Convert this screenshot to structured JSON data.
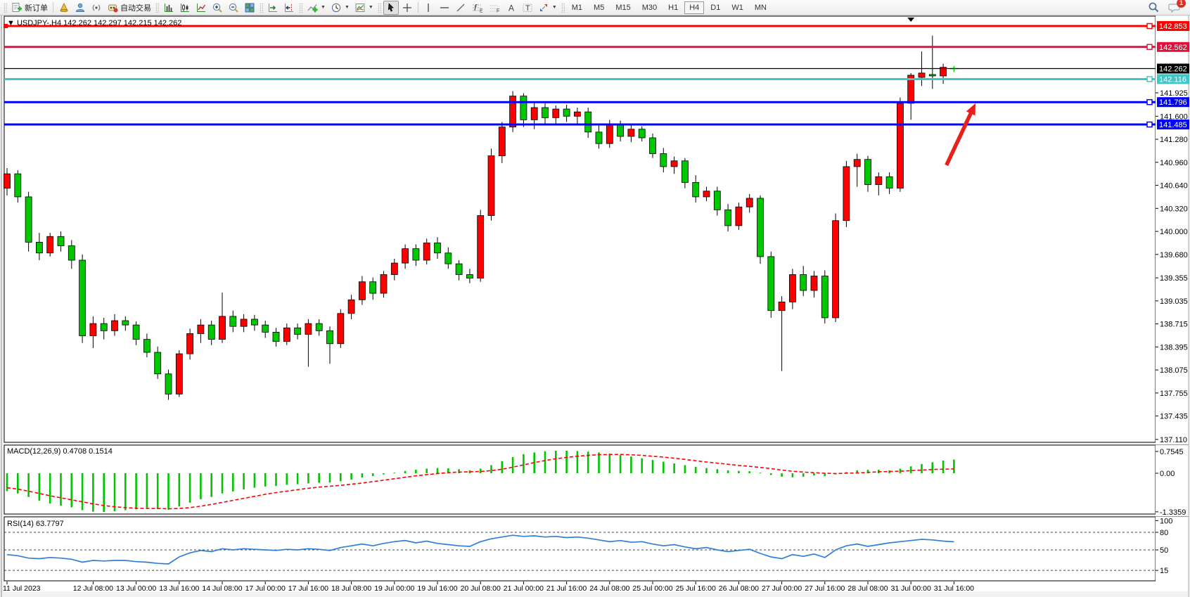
{
  "toolbar": {
    "new_order_label": "新订单",
    "autotrading_label": "自动交易",
    "timeframes": [
      "M1",
      "M5",
      "M15",
      "M30",
      "H1",
      "H4",
      "D1",
      "W1",
      "MN"
    ],
    "active_timeframe": "H4",
    "chat_badge": "1",
    "icon_buttons": [
      "new-order",
      "metaeditor",
      "community",
      "signals",
      "autotrading",
      "bar-chart",
      "candlestick-chart",
      "line-chart",
      "zoom-in",
      "zoom-out",
      "tile-windows",
      "auto-scroll",
      "chart-shift",
      "indicators",
      "periods",
      "templates",
      "cursor",
      "crosshair",
      "vertical-line",
      "horizontal-line",
      "trendline",
      "fibonacci",
      "equidistant-channel",
      "text",
      "text-label",
      "shapes",
      "search",
      "chat"
    ]
  },
  "chart_header": {
    "symbol": "USDJPY-,H4",
    "open": "142.262",
    "high": "142.297",
    "low": "142.215",
    "close": "142.262"
  },
  "chart_data": [
    {
      "type": "candlestick",
      "title": "USDJPY-,H4 142.262 142.297 142.215 142.262",
      "ylim": [
        137.07,
        142.99
      ],
      "bull_color": "#FE0000",
      "bear_color": "#00C800",
      "wick_color": "#000000",
      "current_price": {
        "value": 142.262,
        "label": "142.262",
        "bg": "#000000"
      },
      "level_lines": [
        {
          "price": 142.853,
          "label": "142.853",
          "color": "#FF0000"
        },
        {
          "price": 142.562,
          "label": "142.562",
          "color": "#DC143C"
        },
        {
          "price": 142.116,
          "label": "142.116",
          "color": "#3EC6C8"
        },
        {
          "price": 141.796,
          "label": "141.796",
          "color": "#0000FF"
        },
        {
          "price": 141.485,
          "label": "141.485",
          "color": "#0000FF"
        }
      ],
      "y_ticks": [
        "141.925",
        "141.600",
        "141.280",
        "140.960",
        "140.640",
        "140.320",
        "140.000",
        "139.680",
        "139.355",
        "139.035",
        "138.715",
        "138.395",
        "138.075",
        "137.755",
        "137.435",
        "137.110"
      ],
      "x_labels": [
        {
          "text": "11 Jul 2023",
          "idx": 0
        },
        {
          "text": "12 Jul 08:00",
          "idx": 8
        },
        {
          "text": "13 Jul 00:00",
          "idx": 12
        },
        {
          "text": "13 Jul 16:00",
          "idx": 16
        },
        {
          "text": "14 Jul 08:00",
          "idx": 20
        },
        {
          "text": "17 Jul 00:00",
          "idx": 24
        },
        {
          "text": "17 Jul 16:00",
          "idx": 28
        },
        {
          "text": "18 Jul 08:00",
          "idx": 32
        },
        {
          "text": "19 Jul 00:00",
          "idx": 36
        },
        {
          "text": "19 Jul 16:00",
          "idx": 40
        },
        {
          "text": "20 Jul 08:00",
          "idx": 44
        },
        {
          "text": "21 Jul 00:00",
          "idx": 48
        },
        {
          "text": "21 Jul 16:00",
          "idx": 52
        },
        {
          "text": "24 Jul 08:00",
          "idx": 56
        },
        {
          "text": "25 Jul 00:00",
          "idx": 60
        },
        {
          "text": "25 Jul 16:00",
          "idx": 64
        },
        {
          "text": "26 Jul 08:00",
          "idx": 68
        },
        {
          "text": "27 Jul 00:00",
          "idx": 72
        },
        {
          "text": "27 Jul 16:00",
          "idx": 76
        },
        {
          "text": "28 Jul 08:00",
          "idx": 80
        },
        {
          "text": "31 Jul 00:00",
          "idx": 84
        },
        {
          "text": "31 Jul 16:00",
          "idx": 88
        }
      ],
      "candles": [
        [
          140.6,
          140.88,
          140.5,
          140.8
        ],
        [
          140.8,
          140.85,
          140.4,
          140.48
        ],
        [
          140.48,
          140.55,
          139.72,
          139.85
        ],
        [
          139.85,
          139.98,
          139.6,
          139.7
        ],
        [
          139.7,
          139.98,
          139.65,
          139.93
        ],
        [
          139.93,
          140.0,
          139.72,
          139.8
        ],
        [
          139.8,
          139.88,
          139.48,
          139.6
        ],
        [
          139.6,
          139.68,
          138.45,
          138.55
        ],
        [
          138.55,
          138.82,
          138.38,
          138.72
        ],
        [
          138.72,
          138.8,
          138.5,
          138.62
        ],
        [
          138.62,
          138.85,
          138.55,
          138.76
        ],
        [
          138.76,
          138.82,
          138.62,
          138.7
        ],
        [
          138.7,
          138.75,
          138.42,
          138.5
        ],
        [
          138.5,
          138.58,
          138.25,
          138.32
        ],
        [
          138.32,
          138.4,
          137.95,
          138.02
        ],
        [
          138.02,
          138.08,
          137.66,
          137.74
        ],
        [
          137.74,
          138.35,
          137.7,
          138.3
        ],
        [
          138.3,
          138.65,
          138.22,
          138.58
        ],
        [
          138.58,
          138.78,
          138.45,
          138.7
        ],
        [
          138.7,
          138.76,
          138.42,
          138.5
        ],
        [
          138.5,
          139.15,
          138.45,
          138.82
        ],
        [
          138.82,
          138.9,
          138.6,
          138.68
        ],
        [
          138.68,
          138.85,
          138.6,
          138.78
        ],
        [
          138.78,
          138.84,
          138.62,
          138.7
        ],
        [
          138.7,
          138.76,
          138.52,
          138.6
        ],
        [
          138.6,
          138.66,
          138.4,
          138.47
        ],
        [
          138.47,
          138.72,
          138.42,
          138.66
        ],
        [
          138.66,
          138.72,
          138.5,
          138.57
        ],
        [
          138.57,
          138.78,
          138.12,
          138.72
        ],
        [
          138.72,
          138.78,
          138.55,
          138.62
        ],
        [
          138.62,
          138.68,
          138.16,
          138.44
        ],
        [
          138.44,
          138.92,
          138.38,
          138.86
        ],
        [
          138.86,
          139.12,
          138.78,
          139.05
        ],
        [
          139.05,
          139.38,
          138.98,
          139.3
        ],
        [
          139.3,
          139.36,
          139.05,
          139.14
        ],
        [
          139.14,
          139.45,
          139.08,
          139.4
        ],
        [
          139.4,
          139.62,
          139.32,
          139.56
        ],
        [
          139.56,
          139.82,
          139.48,
          139.76
        ],
        [
          139.76,
          139.82,
          139.52,
          139.6
        ],
        [
          139.6,
          139.9,
          139.54,
          139.84
        ],
        [
          139.84,
          139.92,
          139.62,
          139.7
        ],
        [
          139.7,
          139.78,
          139.48,
          139.55
        ],
        [
          139.55,
          139.6,
          139.32,
          139.4
        ],
        [
          139.4,
          139.48,
          139.28,
          139.35
        ],
        [
          139.35,
          140.3,
          139.3,
          140.22
        ],
        [
          140.22,
          141.15,
          140.15,
          141.05
        ],
        [
          141.05,
          141.52,
          140.95,
          141.45
        ],
        [
          141.45,
          141.95,
          141.38,
          141.88
        ],
        [
          141.88,
          141.92,
          141.45,
          141.55
        ],
        [
          141.55,
          141.8,
          141.42,
          141.72
        ],
        [
          141.72,
          141.78,
          141.5,
          141.58
        ],
        [
          141.58,
          141.75,
          141.48,
          141.7
        ],
        [
          141.7,
          141.76,
          141.52,
          141.6
        ],
        [
          141.6,
          141.72,
          141.5,
          141.66
        ],
        [
          141.66,
          141.72,
          141.3,
          141.38
        ],
        [
          141.38,
          141.5,
          141.15,
          141.22
        ],
        [
          141.22,
          141.55,
          141.16,
          141.48
        ],
        [
          141.48,
          141.54,
          141.25,
          141.32
        ],
        [
          141.32,
          141.48,
          141.24,
          141.42
        ],
        [
          141.42,
          141.46,
          141.25,
          141.3
        ],
        [
          141.3,
          141.36,
          141.02,
          141.08
        ],
        [
          141.08,
          141.16,
          140.82,
          140.9
        ],
        [
          140.9,
          141.04,
          140.8,
          140.98
        ],
        [
          140.98,
          141.02,
          140.6,
          140.68
        ],
        [
          140.68,
          140.78,
          140.4,
          140.48
        ],
        [
          140.48,
          140.62,
          140.42,
          140.56
        ],
        [
          140.56,
          140.62,
          140.22,
          140.3
        ],
        [
          140.3,
          140.38,
          140.0,
          140.08
        ],
        [
          140.08,
          140.4,
          140.02,
          140.34
        ],
        [
          140.34,
          140.52,
          140.26,
          140.46
        ],
        [
          140.46,
          140.5,
          139.55,
          139.65
        ],
        [
          139.65,
          139.72,
          138.8,
          138.9
        ],
        [
          138.9,
          139.1,
          138.06,
          139.02
        ],
        [
          139.02,
          139.48,
          138.92,
          139.4
        ],
        [
          139.4,
          139.52,
          139.1,
          139.18
        ],
        [
          139.18,
          139.45,
          139.08,
          139.38
        ],
        [
          139.38,
          139.46,
          138.72,
          138.8
        ],
        [
          138.8,
          140.25,
          138.74,
          140.15
        ],
        [
          140.15,
          140.98,
          140.06,
          140.9
        ],
        [
          140.9,
          141.08,
          140.62,
          141.0
        ],
        [
          141.0,
          141.05,
          140.55,
          140.65
        ],
        [
          140.65,
          140.82,
          140.5,
          140.76
        ],
        [
          140.76,
          140.82,
          140.52,
          140.6
        ],
        [
          140.6,
          141.86,
          140.55,
          141.78
        ],
        [
          141.78,
          142.2,
          141.55,
          142.17
        ],
        [
          142.14,
          142.5,
          142.02,
          142.2
        ],
        [
          142.18,
          142.72,
          141.98,
          142.16
        ],
        [
          142.16,
          142.33,
          142.05,
          142.28
        ],
        [
          142.262,
          142.297,
          142.215,
          142.262
        ]
      ],
      "shift_marker_idx": 84,
      "arrow": {
        "from": {
          "idx": 87.3,
          "price": 140.92
        },
        "to": {
          "idx": 90.0,
          "price": 141.78
        },
        "color": "#E8201A"
      }
    },
    {
      "type": "bar",
      "name": "MACD",
      "label": "MACD(12,26,9) 0.4708 0.1514",
      "ylim": [
        -1.412,
        0.974
      ],
      "axis_labels": [
        {
          "v": 0.7545,
          "text": "0.7545"
        },
        {
          "v": 0,
          "text": "0.00"
        },
        {
          "v": -1.3359,
          "text": "-1.3359"
        }
      ],
      "histogram_color": "#00C400",
      "signal_color": "#FF0000",
      "values": [
        -0.62,
        -0.7,
        -0.82,
        -0.95,
        -1.05,
        -1.12,
        -1.18,
        -1.28,
        -1.33,
        -1.34,
        -1.32,
        -1.28,
        -1.25,
        -1.22,
        -1.24,
        -1.26,
        -1.15,
        -1.02,
        -0.9,
        -0.82,
        -0.7,
        -0.63,
        -0.56,
        -0.5,
        -0.46,
        -0.44,
        -0.4,
        -0.38,
        -0.35,
        -0.33,
        -0.32,
        -0.28,
        -0.22,
        -0.15,
        -0.1,
        -0.04,
        0.02,
        0.08,
        0.12,
        0.16,
        0.18,
        0.17,
        0.14,
        0.1,
        0.16,
        0.28,
        0.42,
        0.56,
        0.66,
        0.72,
        0.76,
        0.78,
        0.78,
        0.77,
        0.75,
        0.72,
        0.68,
        0.63,
        0.58,
        0.52,
        0.46,
        0.4,
        0.34,
        0.28,
        0.22,
        0.18,
        0.14,
        0.1,
        0.08,
        0.07,
        0.02,
        -0.06,
        -0.12,
        -0.14,
        -0.12,
        -0.08,
        -0.1,
        -0.04,
        0.04,
        0.1,
        0.12,
        0.12,
        0.1,
        0.16,
        0.24,
        0.32,
        0.38,
        0.44,
        0.4708
      ],
      "signal": [
        -0.5,
        -0.55,
        -0.62,
        -0.7,
        -0.78,
        -0.85,
        -0.92,
        -0.99,
        -1.06,
        -1.12,
        -1.16,
        -1.19,
        -1.21,
        -1.22,
        -1.22,
        -1.23,
        -1.22,
        -1.19,
        -1.14,
        -1.08,
        -1.01,
        -0.94,
        -0.87,
        -0.8,
        -0.73,
        -0.67,
        -0.62,
        -0.57,
        -0.52,
        -0.48,
        -0.45,
        -0.42,
        -0.38,
        -0.34,
        -0.29,
        -0.24,
        -0.19,
        -0.14,
        -0.09,
        -0.05,
        -0.01,
        0.02,
        0.04,
        0.05,
        0.06,
        0.09,
        0.14,
        0.21,
        0.29,
        0.37,
        0.44,
        0.5,
        0.55,
        0.59,
        0.62,
        0.64,
        0.65,
        0.65,
        0.64,
        0.62,
        0.59,
        0.56,
        0.52,
        0.48,
        0.43,
        0.39,
        0.35,
        0.31,
        0.27,
        0.24,
        0.2,
        0.16,
        0.11,
        0.07,
        0.04,
        0.02,
        0.0,
        -0.01,
        0.0,
        0.01,
        0.03,
        0.05,
        0.06,
        0.07,
        0.09,
        0.11,
        0.13,
        0.14,
        0.1514
      ]
    },
    {
      "type": "line",
      "name": "RSI",
      "label": "RSI(14) 63.7797",
      "ylim": [
        -2.8,
        106.4
      ],
      "axis_labels": [
        {
          "v": 100,
          "text": "100"
        },
        {
          "v": 80,
          "text": "80"
        },
        {
          "v": 50,
          "text": "50"
        },
        {
          "v": 15,
          "text": "15"
        }
      ],
      "levels": [
        80,
        50,
        15
      ],
      "line_color": "#2F7ED8",
      "values": [
        42,
        40,
        36,
        35,
        37,
        36,
        34,
        29,
        32,
        31,
        32,
        32,
        30,
        29,
        27,
        26,
        38,
        45,
        49,
        47,
        52,
        50,
        52,
        51,
        50,
        49,
        51,
        50,
        52,
        51,
        49,
        54,
        57,
        60,
        57,
        61,
        64,
        66,
        62,
        65,
        61,
        59,
        57,
        56,
        64,
        69,
        72,
        75,
        73,
        74,
        72,
        73,
        71,
        72,
        70,
        67,
        64,
        66,
        63,
        64,
        60,
        57,
        59,
        55,
        52,
        54,
        50,
        47,
        49,
        51,
        44,
        38,
        35,
        42,
        39,
        43,
        37,
        50,
        57,
        60,
        56,
        59,
        62,
        64,
        66,
        68,
        67,
        65,
        63.78
      ]
    }
  ]
}
